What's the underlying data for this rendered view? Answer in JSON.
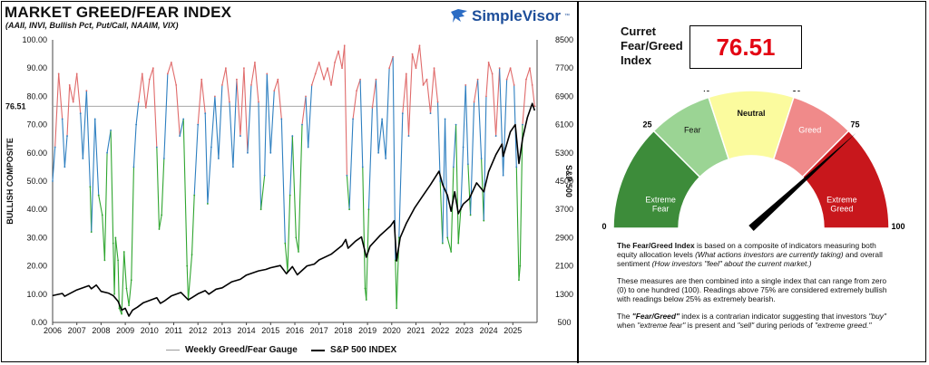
{
  "header": {
    "title": "MARKET GREED/FEAR INDEX",
    "subtitle": "(AAII, INVI, Bullish Pct, Put/Call, NAAIM, VIX)",
    "brand": "SimpleVisor",
    "brand_tm": "™"
  },
  "chart_data": {
    "type": "line",
    "title": "MARKET GREED/FEAR INDEX",
    "subtitle": "(AAII, INVI, Bullish Pct, Put/Call, NAAIM, VIX)",
    "ylabel_left": "BULLISH COMPOSITE",
    "ylabel_right": "S&P 500",
    "ylim_left": [
      0,
      100
    ],
    "ylim_right": [
      500,
      8500
    ],
    "yticks_left": [
      "0.00",
      "10.00",
      "20.00",
      "30.00",
      "40.00",
      "50.00",
      "60.00",
      "70.00",
      "80.00",
      "90.00",
      "100.00"
    ],
    "yticks_right": [
      "500",
      "1300",
      "2100",
      "2900",
      "3700",
      "4500",
      "5300",
      "6100",
      "6900",
      "7700",
      "8500"
    ],
    "xticks": [
      "2006",
      "2007",
      "2008",
      "2009",
      "2010",
      "2011",
      "2012",
      "2013",
      "2014",
      "2015",
      "2016",
      "2017",
      "2018",
      "2019",
      "2020",
      "2021",
      "2022",
      "2023",
      "2024",
      "2025"
    ],
    "current_value_label": "76.51",
    "current_value": 76.51,
    "grid": false,
    "legend_position": "bottom",
    "colors": {
      "greed": "#e06b6b",
      "neutral": "#2e7fc0",
      "fear": "#2fa52f",
      "sp500": "#000000",
      "ref_line": "#9a9a9a",
      "marker": "#e30613"
    },
    "series": [
      {
        "name": "Weekly Greed/Fear Gauge",
        "axis": "left",
        "points": [
          [
            2006.0,
            50
          ],
          [
            2006.1,
            62
          ],
          [
            2006.25,
            88
          ],
          [
            2006.4,
            72
          ],
          [
            2006.5,
            55
          ],
          [
            2006.6,
            66
          ],
          [
            2006.7,
            84
          ],
          [
            2006.85,
            78
          ],
          [
            2007.0,
            88
          ],
          [
            2007.15,
            74
          ],
          [
            2007.25,
            58
          ],
          [
            2007.4,
            82
          ],
          [
            2007.55,
            48
          ],
          [
            2007.6,
            32
          ],
          [
            2007.75,
            72
          ],
          [
            2007.9,
            45
          ],
          [
            2008.05,
            38
          ],
          [
            2008.15,
            22
          ],
          [
            2008.25,
            60
          ],
          [
            2008.4,
            68
          ],
          [
            2008.5,
            28
          ],
          [
            2008.55,
            10
          ],
          [
            2008.6,
            30
          ],
          [
            2008.7,
            22
          ],
          [
            2008.75,
            5
          ],
          [
            2008.85,
            3
          ],
          [
            2008.95,
            25
          ],
          [
            2009.05,
            12
          ],
          [
            2009.15,
            6
          ],
          [
            2009.25,
            15
          ],
          [
            2009.35,
            55
          ],
          [
            2009.45,
            70
          ],
          [
            2009.55,
            78
          ],
          [
            2009.7,
            88
          ],
          [
            2009.85,
            76
          ],
          [
            2010.0,
            86
          ],
          [
            2010.15,
            90
          ],
          [
            2010.3,
            62
          ],
          [
            2010.4,
            33
          ],
          [
            2010.5,
            38
          ],
          [
            2010.6,
            58
          ],
          [
            2010.75,
            88
          ],
          [
            2010.9,
            92
          ],
          [
            2011.1,
            84
          ],
          [
            2011.25,
            66
          ],
          [
            2011.4,
            72
          ],
          [
            2011.55,
            20
          ],
          [
            2011.6,
            8
          ],
          [
            2011.75,
            24
          ],
          [
            2011.85,
            45
          ],
          [
            2012.0,
            70
          ],
          [
            2012.15,
            86
          ],
          [
            2012.3,
            74
          ],
          [
            2012.4,
            42
          ],
          [
            2012.55,
            62
          ],
          [
            2012.7,
            80
          ],
          [
            2012.85,
            58
          ],
          [
            2013.0,
            84
          ],
          [
            2013.15,
            90
          ],
          [
            2013.3,
            78
          ],
          [
            2013.45,
            55
          ],
          [
            2013.6,
            86
          ],
          [
            2013.75,
            66
          ],
          [
            2013.9,
            90
          ],
          [
            2014.05,
            60
          ],
          [
            2014.2,
            84
          ],
          [
            2014.35,
            92
          ],
          [
            2014.5,
            78
          ],
          [
            2014.6,
            40
          ],
          [
            2014.75,
            52
          ],
          [
            2014.85,
            88
          ],
          [
            2015.0,
            60
          ],
          [
            2015.15,
            82
          ],
          [
            2015.3,
            86
          ],
          [
            2015.45,
            72
          ],
          [
            2015.6,
            28
          ],
          [
            2015.7,
            18
          ],
          [
            2015.8,
            45
          ],
          [
            2015.9,
            66
          ],
          [
            2016.05,
            30
          ],
          [
            2016.15,
            25
          ],
          [
            2016.3,
            70
          ],
          [
            2016.45,
            80
          ],
          [
            2016.55,
            62
          ],
          [
            2016.7,
            84
          ],
          [
            2016.85,
            88
          ],
          [
            2017.0,
            92
          ],
          [
            2017.2,
            86
          ],
          [
            2017.35,
            90
          ],
          [
            2017.5,
            84
          ],
          [
            2017.65,
            92
          ],
          [
            2017.8,
            96
          ],
          [
            2017.95,
            90
          ],
          [
            2018.05,
            98
          ],
          [
            2018.15,
            52
          ],
          [
            2018.25,
            40
          ],
          [
            2018.4,
            72
          ],
          [
            2018.55,
            82
          ],
          [
            2018.7,
            86
          ],
          [
            2018.8,
            55
          ],
          [
            2018.9,
            12
          ],
          [
            2018.95,
            8
          ],
          [
            2019.05,
            40
          ],
          [
            2019.2,
            76
          ],
          [
            2019.35,
            86
          ],
          [
            2019.45,
            60
          ],
          [
            2019.6,
            72
          ],
          [
            2019.75,
            58
          ],
          [
            2019.9,
            90
          ],
          [
            2020.05,
            94
          ],
          [
            2020.15,
            22
          ],
          [
            2020.2,
            5
          ],
          [
            2020.3,
            30
          ],
          [
            2020.45,
            74
          ],
          [
            2020.6,
            88
          ],
          [
            2020.7,
            66
          ],
          [
            2020.85,
            95
          ],
          [
            2021.0,
            90
          ],
          [
            2021.15,
            98
          ],
          [
            2021.3,
            84
          ],
          [
            2021.45,
            86
          ],
          [
            2021.6,
            74
          ],
          [
            2021.75,
            90
          ],
          [
            2021.9,
            78
          ],
          [
            2022.0,
            50
          ],
          [
            2022.1,
            28
          ],
          [
            2022.2,
            72
          ],
          [
            2022.3,
            30
          ],
          [
            2022.45,
            25
          ],
          [
            2022.55,
            55
          ],
          [
            2022.65,
            70
          ],
          [
            2022.75,
            28
          ],
          [
            2022.85,
            40
          ],
          [
            2022.95,
            62
          ],
          [
            2023.05,
            84
          ],
          [
            2023.15,
            56
          ],
          [
            2023.25,
            38
          ],
          [
            2023.4,
            78
          ],
          [
            2023.55,
            86
          ],
          [
            2023.7,
            58
          ],
          [
            2023.8,
            36
          ],
          [
            2023.9,
            80
          ],
          [
            2024.0,
            92
          ],
          [
            2024.15,
            88
          ],
          [
            2024.3,
            66
          ],
          [
            2024.45,
            90
          ],
          [
            2024.6,
            52
          ],
          [
            2024.75,
            86
          ],
          [
            2024.9,
            90
          ],
          [
            2025.05,
            84
          ],
          [
            2025.15,
            55
          ],
          [
            2025.25,
            15
          ],
          [
            2025.3,
            20
          ],
          [
            2025.4,
            70
          ],
          [
            2025.55,
            86
          ],
          [
            2025.7,
            90
          ],
          [
            2025.8,
            84
          ],
          [
            2025.9,
            76.51
          ]
        ]
      },
      {
        "name": "S&P 500 INDEX",
        "axis": "right",
        "points": [
          [
            2006.0,
            1260
          ],
          [
            2006.4,
            1320
          ],
          [
            2006.5,
            1240
          ],
          [
            2007.0,
            1420
          ],
          [
            2007.5,
            1540
          ],
          [
            2007.6,
            1450
          ],
          [
            2007.8,
            1560
          ],
          [
            2008.0,
            1380
          ],
          [
            2008.3,
            1330
          ],
          [
            2008.5,
            1260
          ],
          [
            2008.7,
            1100
          ],
          [
            2008.85,
            850
          ],
          [
            2009.0,
            900
          ],
          [
            2009.15,
            680
          ],
          [
            2009.3,
            850
          ],
          [
            2009.5,
            930
          ],
          [
            2009.75,
            1060
          ],
          [
            2010.0,
            1120
          ],
          [
            2010.3,
            1200
          ],
          [
            2010.45,
            1040
          ],
          [
            2010.6,
            1100
          ],
          [
            2010.9,
            1250
          ],
          [
            2011.3,
            1350
          ],
          [
            2011.6,
            1140
          ],
          [
            2011.75,
            1200
          ],
          [
            2012.0,
            1310
          ],
          [
            2012.3,
            1400
          ],
          [
            2012.45,
            1300
          ],
          [
            2012.75,
            1440
          ],
          [
            2013.0,
            1480
          ],
          [
            2013.4,
            1650
          ],
          [
            2013.75,
            1720
          ],
          [
            2014.0,
            1840
          ],
          [
            2014.5,
            1960
          ],
          [
            2014.8,
            2000
          ],
          [
            2015.0,
            2050
          ],
          [
            2015.4,
            2110
          ],
          [
            2015.65,
            1880
          ],
          [
            2015.9,
            2080
          ],
          [
            2016.1,
            1850
          ],
          [
            2016.5,
            2100
          ],
          [
            2016.8,
            2150
          ],
          [
            2017.0,
            2270
          ],
          [
            2017.5,
            2430
          ],
          [
            2017.95,
            2680
          ],
          [
            2018.1,
            2850
          ],
          [
            2018.2,
            2600
          ],
          [
            2018.5,
            2800
          ],
          [
            2018.75,
            2920
          ],
          [
            2018.95,
            2350
          ],
          [
            2019.1,
            2650
          ],
          [
            2019.5,
            2950
          ],
          [
            2019.95,
            3230
          ],
          [
            2020.1,
            3380
          ],
          [
            2020.2,
            2240
          ],
          [
            2020.35,
            2900
          ],
          [
            2020.6,
            3300
          ],
          [
            2020.95,
            3750
          ],
          [
            2021.3,
            4100
          ],
          [
            2021.6,
            4400
          ],
          [
            2021.95,
            4780
          ],
          [
            2022.1,
            4400
          ],
          [
            2022.3,
            4100
          ],
          [
            2022.45,
            3650
          ],
          [
            2022.6,
            4200
          ],
          [
            2022.75,
            3580
          ],
          [
            2022.95,
            3850
          ],
          [
            2023.2,
            4000
          ],
          [
            2023.5,
            4450
          ],
          [
            2023.8,
            4200
          ],
          [
            2024.0,
            4770
          ],
          [
            2024.3,
            5250
          ],
          [
            2024.55,
            5550
          ],
          [
            2024.6,
            5200
          ],
          [
            2024.9,
            5900
          ],
          [
            2025.1,
            6100
          ],
          [
            2025.25,
            5000
          ],
          [
            2025.4,
            5700
          ],
          [
            2025.6,
            6300
          ],
          [
            2025.8,
            6700
          ],
          [
            2025.9,
            6500
          ]
        ]
      }
    ]
  },
  "legend": {
    "gauge_label": "Weekly Greed/Fear Gauge",
    "sp_label": "S&P 500 INDEX"
  },
  "current": {
    "label": "Curret Fear/Greed Index",
    "value": "76.51"
  },
  "gauge": {
    "value": 76.51,
    "ticks": [
      "0",
      "25",
      "40",
      "60",
      "75",
      "100"
    ],
    "segments": [
      {
        "label_line1": "Extreme",
        "label_line2": "Fear",
        "from": 0,
        "to": 25,
        "color": "#3d8c3a"
      },
      {
        "label_line1": "Fear",
        "label_line2": "",
        "from": 25,
        "to": 40,
        "color": "#9bd494"
      },
      {
        "label_line1": "Neutral",
        "label_line2": "",
        "from": 40,
        "to": 60,
        "color": "#fbfb9e"
      },
      {
        "label_line1": "Greed",
        "label_line2": "",
        "from": 60,
        "to": 75,
        "color": "#f08a8a"
      },
      {
        "label_line1": "Extreme",
        "label_line2": "Greed",
        "from": 75,
        "to": 100,
        "color": "#c8171c"
      }
    ]
  },
  "description": {
    "p1_bold": "The Fear/Greed Index",
    "p1_a": " is based on a composite of indicators measuring both equity allocation levels ",
    "p1_i1": "(What actions investors are currently taking)",
    "p1_b": " and overall sentiment ",
    "p1_i2": "(How investors \"feel\" about the current market.)",
    "p2": "These measures are then combined into a single index that can range from zero (0) to one hundred (100). Readings above 75% are considered extremely bullish with readings below 25% as extremely bearish.",
    "p3_a": "The ",
    "p3_bi": "\"Fear/Greed\"",
    "p3_b": " index is a contrarian indicator suggesting that investors ",
    "p3_i1": "\"buy\"",
    "p3_c": " when ",
    "p3_i2": "\"extreme fear\"",
    "p3_d": " is present and ",
    "p3_i3": "\"sell\"",
    "p3_e": " during periods of ",
    "p3_i4": "\"extreme greed.\""
  }
}
